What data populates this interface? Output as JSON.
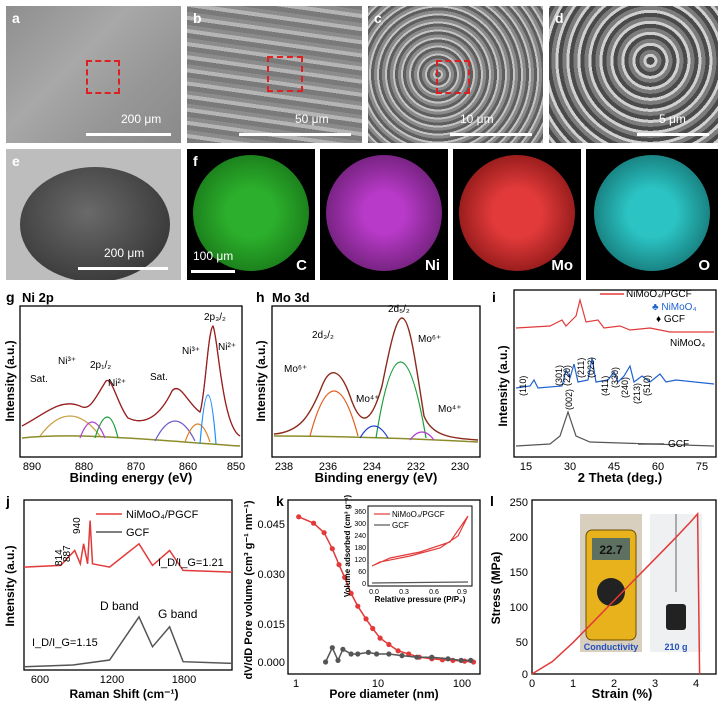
{
  "micrographs": [
    {
      "letter": "a",
      "scale": "200 μm"
    },
    {
      "letter": "b",
      "scale": "50 μm"
    },
    {
      "letter": "c",
      "scale": "10 μm"
    },
    {
      "letter": "d",
      "scale": "5 μm"
    }
  ],
  "cross_section": {
    "letter": "e",
    "scale": "200 μm"
  },
  "maps": {
    "letter": "f",
    "scale": "100 μm",
    "elements": [
      {
        "label": "C",
        "color": "#2eb82e"
      },
      {
        "label": "Ni",
        "color": "#b83ac8"
      },
      {
        "label": "Mo",
        "color": "#e23a3a"
      },
      {
        "label": "O",
        "color": "#2bc3c3"
      }
    ]
  },
  "panel_g": {
    "letter": "g",
    "title": "Ni 2p",
    "xlabel": "Binding energy (eV)",
    "ylabel": "Intensity (a.u.)",
    "ticks": [
      "890",
      "880",
      "870",
      "860",
      "850"
    ],
    "annotations": [
      "Sat.",
      "Ni³⁺",
      "2p₁/₂",
      "Ni²⁺",
      "Sat.",
      "Ni³⁺",
      "2p₃/₂",
      "Ni²⁺"
    ]
  },
  "panel_h": {
    "letter": "h",
    "title": "Mo 3d",
    "xlabel": "Binding energy (eV)",
    "ylabel": "Intensity (a.u.)",
    "ticks": [
      "238",
      "236",
      "234",
      "232",
      "230"
    ],
    "annotations": [
      "2d₃/₂",
      "Mo⁶⁺",
      "2d₅/₂",
      "Mo⁶⁺",
      "Mo⁴⁺",
      "Mo⁴⁺"
    ]
  },
  "panel_i": {
    "letter": "i",
    "xlabel": "2 Theta (deg.)",
    "ylabel": "Intensity (a.u.)",
    "ticks": [
      "15",
      "30",
      "45",
      "60",
      "75"
    ],
    "legend": [
      "NiMoO₄/PGCF",
      "NiMoO₄",
      "GCF"
    ],
    "markers": [
      "♣ NiMoO₄",
      "♦ GCF"
    ],
    "hkl": [
      "(110)",
      "(301)",
      "(220)",
      "(211)",
      "(022)",
      "(411)",
      "(330)",
      "(240)",
      "(213)",
      "(510)",
      "(002)"
    ],
    "series_labels": [
      "NiMoO₄",
      "GCF"
    ]
  },
  "panel_j": {
    "letter": "j",
    "xlabel": "Raman Shift (cm⁻¹)",
    "ylabel": "Intensity (a.u.)",
    "ticks": [
      "600",
      "1200",
      "1800"
    ],
    "legend": [
      "NiMoO₄/PGCF",
      "GCF"
    ],
    "peaks": [
      "814",
      "887",
      "940"
    ],
    "ratio_top": "I_D/I_G=1.21",
    "ratio_bottom": "I_D/I_G=1.15",
    "bands": [
      "D band",
      "G band"
    ]
  },
  "panel_k": {
    "letter": "k",
    "xlabel": "Pore diameter (nm)",
    "ylabel": "dV/dD Pore volume (cm³ g⁻¹ nm⁻¹)",
    "yticks": [
      "0.045",
      "0.030",
      "0.015",
      "0.000"
    ],
    "xticks": [
      "1",
      "10",
      "100"
    ],
    "inset": {
      "ylabel": "Volume adsorbed (cm³ g⁻¹)",
      "xlabel": "Relative pressure (P/P₀)",
      "yticks": [
        "360",
        "300",
        "240",
        "180",
        "120",
        "60",
        "0"
      ],
      "xticks": [
        "0.0",
        "0.3",
        "0.6",
        "0.9"
      ],
      "legend": [
        "NiMoO₄/PGCF",
        "GCF"
      ]
    }
  },
  "panel_l": {
    "letter": "l",
    "xlabel": "Strain (%)",
    "ylabel": "Stress (MPa)",
    "yticks": [
      "250",
      "200",
      "150",
      "100",
      "50",
      "0"
    ],
    "xticks": [
      "0",
      "1",
      "2",
      "3",
      "4"
    ],
    "photo_labels": [
      "Conductivity",
      "210 g"
    ],
    "meter_value": "22.7"
  },
  "chart_data": [
    {
      "type": "line",
      "panel": "k",
      "title": "",
      "xlabel": "Pore diameter (nm)",
      "ylabel": "dV/dD Pore volume (cm³ g⁻¹ nm⁻¹)",
      "xscale": "log",
      "xlim": [
        1,
        150
      ],
      "ylim": [
        -0.002,
        0.05
      ],
      "series": [
        {
          "name": "NiMoO₄/PGCF",
          "x": [
            1.2,
            1.8,
            2.4,
            3,
            3.6,
            4.2,
            5,
            6,
            7.5,
            9,
            11,
            14,
            18,
            24,
            32,
            45,
            60,
            80,
            110,
            140
          ],
          "values": [
            0.046,
            0.044,
            0.041,
            0.036,
            0.031,
            0.027,
            0.022,
            0.018,
            0.014,
            0.011,
            0.008,
            0.006,
            0.004,
            0.003,
            0.002,
            0.0015,
            0.0012,
            0.001,
            0.0008,
            0.0005
          ]
        },
        {
          "name": "GCF",
          "x": [
            2.5,
            3,
            3.5,
            4,
            5,
            6,
            8,
            10,
            14,
            20,
            30,
            45,
            70,
            100,
            130
          ],
          "values": [
            0.0005,
            0.005,
            0.001,
            0.0045,
            0.003,
            0.003,
            0.0035,
            0.003,
            0.003,
            0.0025,
            0.002,
            0.002,
            0.0015,
            0.001,
            0.001
          ]
        }
      ]
    },
    {
      "type": "line",
      "panel": "l",
      "title": "",
      "xlabel": "Strain (%)",
      "ylabel": "Stress (MPa)",
      "xlim": [
        0,
        4.5
      ],
      "ylim": [
        0,
        250
      ],
      "series": [
        {
          "name": "",
          "x": [
            0,
            0.5,
            1,
            1.5,
            2,
            2.5,
            3,
            3.5,
            3.9,
            4.05,
            4.1
          ],
          "values": [
            0,
            18,
            45,
            75,
            105,
            135,
            165,
            195,
            220,
            230,
            0
          ]
        }
      ]
    },
    {
      "type": "line",
      "panel": "j",
      "title": "",
      "xlabel": "Raman Shift (cm⁻¹)",
      "ylabel": "Intensity (a.u.)",
      "xlim": [
        400,
        2100
      ],
      "series": [
        {
          "name": "NiMoO₄/PGCF",
          "x": [
            400,
            700,
            814,
            860,
            887,
            920,
            940,
            960,
            1100,
            1340,
            1450,
            1590,
            1700,
            2100
          ],
          "values": [
            0.62,
            0.63,
            0.72,
            0.64,
            0.76,
            0.64,
            0.9,
            0.64,
            0.62,
            0.76,
            0.63,
            0.72,
            0.6,
            0.59
          ]
        },
        {
          "name": "GCF",
          "x": [
            400,
            800,
            1100,
            1340,
            1450,
            1590,
            1700,
            2100
          ],
          "values": [
            0.02,
            0.03,
            0.06,
            0.32,
            0.14,
            0.26,
            0.05,
            0.04
          ]
        }
      ]
    }
  ]
}
